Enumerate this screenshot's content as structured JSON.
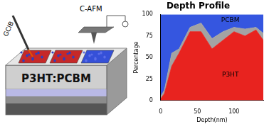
{
  "diagram": {
    "labels": {
      "beam": "GCIB",
      "probe": "C-AFM",
      "sample": "P3HT:PCBM"
    }
  },
  "chart_data": {
    "type": "area",
    "title": "Depth Profile",
    "x_label": "Depth(nm)",
    "y_label": "Percentage",
    "x": [
      0,
      5,
      15,
      25,
      40,
      55,
      70,
      85,
      100,
      115,
      130,
      140
    ],
    "series": [
      {
        "name": "P3HT",
        "color": "#e8231f",
        "values": [
          2,
          8,
          40,
          55,
          80,
          80,
          60,
          70,
          80,
          75,
          82,
          70
        ]
      },
      {
        "color": "#a3a3a3",
        "values": [
          3,
          4,
          15,
          5,
          5,
          10,
          12,
          10,
          5,
          8,
          3,
          8
        ]
      },
      {
        "name": "PCBM",
        "color": "#3556e0",
        "values": [
          95,
          88,
          45,
          40,
          15,
          10,
          28,
          20,
          15,
          17,
          15,
          22
        ]
      }
    ],
    "stacked": true,
    "grid": false,
    "xlim": [
      0,
      140
    ],
    "xticks": [
      0,
      50,
      100
    ],
    "ylim": [
      0,
      100
    ],
    "yticks": [
      0,
      25,
      50,
      75,
      100
    ]
  }
}
